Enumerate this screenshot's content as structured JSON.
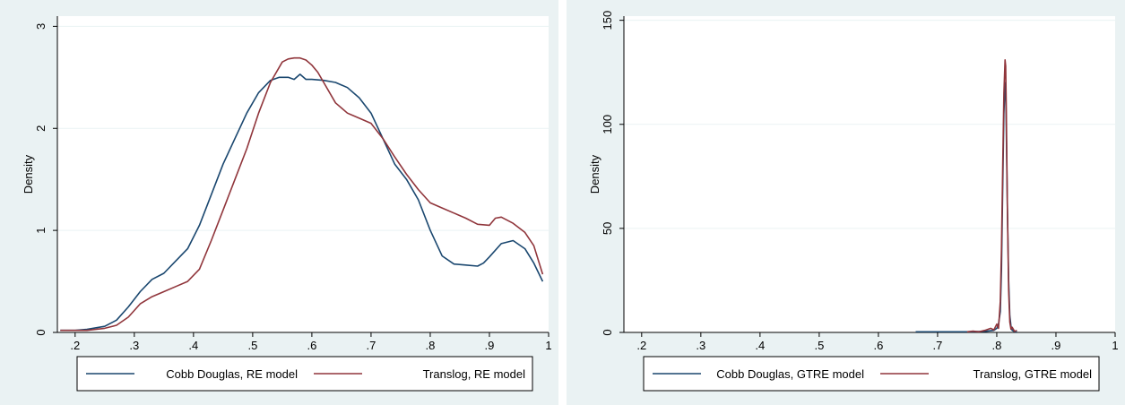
{
  "colors": {
    "series1": "#1a476f",
    "series2": "#90353b",
    "background": "#eaf2f3",
    "plot": "#ffffff",
    "grid": "#eaf2f3"
  },
  "chart_data": [
    {
      "type": "line",
      "title": "",
      "xlabel": "",
      "ylabel": "Density",
      "xlim": [
        0.17,
        1.0
      ],
      "ylim": [
        0,
        3.1
      ],
      "xticks": [
        0.2,
        0.3,
        0.4,
        0.5,
        0.6,
        0.7,
        0.8,
        0.9,
        1.0
      ],
      "xtick_labels": [
        ".2",
        ".3",
        ".4",
        ".5",
        ".6",
        ".7",
        ".8",
        ".9",
        "1"
      ],
      "yticks": [
        0,
        1,
        2,
        3
      ],
      "ytick_labels": [
        "0",
        "1",
        "2",
        "3"
      ],
      "grid": true,
      "legend_position": "bottom",
      "series": [
        {
          "name": "Cobb Douglas, RE model",
          "x": [
            0.175,
            0.2,
            0.22,
            0.25,
            0.27,
            0.29,
            0.31,
            0.33,
            0.35,
            0.37,
            0.39,
            0.41,
            0.43,
            0.45,
            0.47,
            0.49,
            0.51,
            0.53,
            0.545,
            0.56,
            0.57,
            0.58,
            0.59,
            0.6,
            0.62,
            0.64,
            0.66,
            0.68,
            0.7,
            0.72,
            0.74,
            0.76,
            0.78,
            0.8,
            0.82,
            0.84,
            0.86,
            0.88,
            0.89,
            0.9,
            0.92,
            0.94,
            0.96,
            0.975,
            0.99
          ],
          "y": [
            0.02,
            0.02,
            0.03,
            0.06,
            0.12,
            0.25,
            0.4,
            0.52,
            0.58,
            0.7,
            0.82,
            1.05,
            1.35,
            1.65,
            1.9,
            2.15,
            2.35,
            2.47,
            2.5,
            2.5,
            2.48,
            2.53,
            2.48,
            2.48,
            2.47,
            2.45,
            2.4,
            2.3,
            2.15,
            1.9,
            1.65,
            1.5,
            1.3,
            1.0,
            0.75,
            0.67,
            0.66,
            0.65,
            0.68,
            0.74,
            0.87,
            0.9,
            0.82,
            0.68,
            0.5
          ]
        },
        {
          "name": "Translog, RE model",
          "x": [
            0.175,
            0.2,
            0.22,
            0.25,
            0.27,
            0.29,
            0.31,
            0.33,
            0.35,
            0.37,
            0.39,
            0.41,
            0.43,
            0.45,
            0.47,
            0.49,
            0.51,
            0.53,
            0.55,
            0.56,
            0.57,
            0.58,
            0.59,
            0.6,
            0.61,
            0.62,
            0.64,
            0.66,
            0.68,
            0.7,
            0.72,
            0.74,
            0.76,
            0.78,
            0.8,
            0.82,
            0.84,
            0.86,
            0.88,
            0.9,
            0.91,
            0.92,
            0.94,
            0.96,
            0.975,
            0.99
          ],
          "y": [
            0.02,
            0.02,
            0.02,
            0.04,
            0.07,
            0.15,
            0.28,
            0.35,
            0.4,
            0.45,
            0.5,
            0.62,
            0.9,
            1.2,
            1.5,
            1.8,
            2.15,
            2.45,
            2.65,
            2.68,
            2.69,
            2.69,
            2.67,
            2.62,
            2.55,
            2.45,
            2.25,
            2.15,
            2.1,
            2.05,
            1.9,
            1.72,
            1.55,
            1.4,
            1.27,
            1.22,
            1.17,
            1.12,
            1.06,
            1.05,
            1.12,
            1.13,
            1.07,
            0.98,
            0.85,
            0.57
          ]
        }
      ]
    },
    {
      "type": "line",
      "title": "",
      "xlabel": "",
      "ylabel": "Density",
      "xlim": [
        0.17,
        1.0
      ],
      "ylim": [
        0,
        152
      ],
      "xticks": [
        0.2,
        0.3,
        0.4,
        0.5,
        0.6,
        0.7,
        0.8,
        0.9,
        1.0
      ],
      "xtick_labels": [
        ".2",
        ".3",
        ".4",
        ".5",
        ".6",
        ".7",
        ".8",
        ".9",
        "1"
      ],
      "yticks": [
        0,
        50,
        100,
        150
      ],
      "ytick_labels": [
        "0",
        "50",
        "100",
        "150"
      ],
      "grid": true,
      "legend_position": "bottom",
      "series": [
        {
          "name": "Cobb Douglas, GTRE model",
          "x": [
            0.663,
            0.7,
            0.75,
            0.78,
            0.795,
            0.8,
            0.803,
            0.806,
            0.808,
            0.81,
            0.812,
            0.814,
            0.815,
            0.816,
            0.818,
            0.82,
            0.822,
            0.824,
            0.826,
            0.83,
            0.834
          ],
          "y": [
            0.3,
            0.3,
            0.3,
            0.5,
            1.0,
            2.0,
            4.0,
            10.0,
            30.0,
            70.0,
            105.0,
            120.0,
            118.0,
            100.0,
            60.0,
            25.0,
            8.0,
            3.0,
            1.0,
            0.4,
            0.3
          ]
        },
        {
          "name": "Translog, GTRE model",
          "x": [
            0.75,
            0.76,
            0.77,
            0.78,
            0.79,
            0.795,
            0.8,
            0.803,
            0.806,
            0.808,
            0.81,
            0.812,
            0.814,
            0.815,
            0.816,
            0.818,
            0.82,
            0.822,
            0.824,
            0.826,
            0.83,
            0.834
          ],
          "y": [
            0.3,
            0.6,
            0.3,
            1.0,
            2.0,
            1.2,
            4.0,
            2.0,
            15.0,
            40.0,
            80.0,
            115.0,
            131.0,
            128.0,
            110.0,
            60.0,
            20.0,
            5.0,
            1.5,
            2.5,
            0.5,
            1.0
          ]
        }
      ]
    }
  ]
}
